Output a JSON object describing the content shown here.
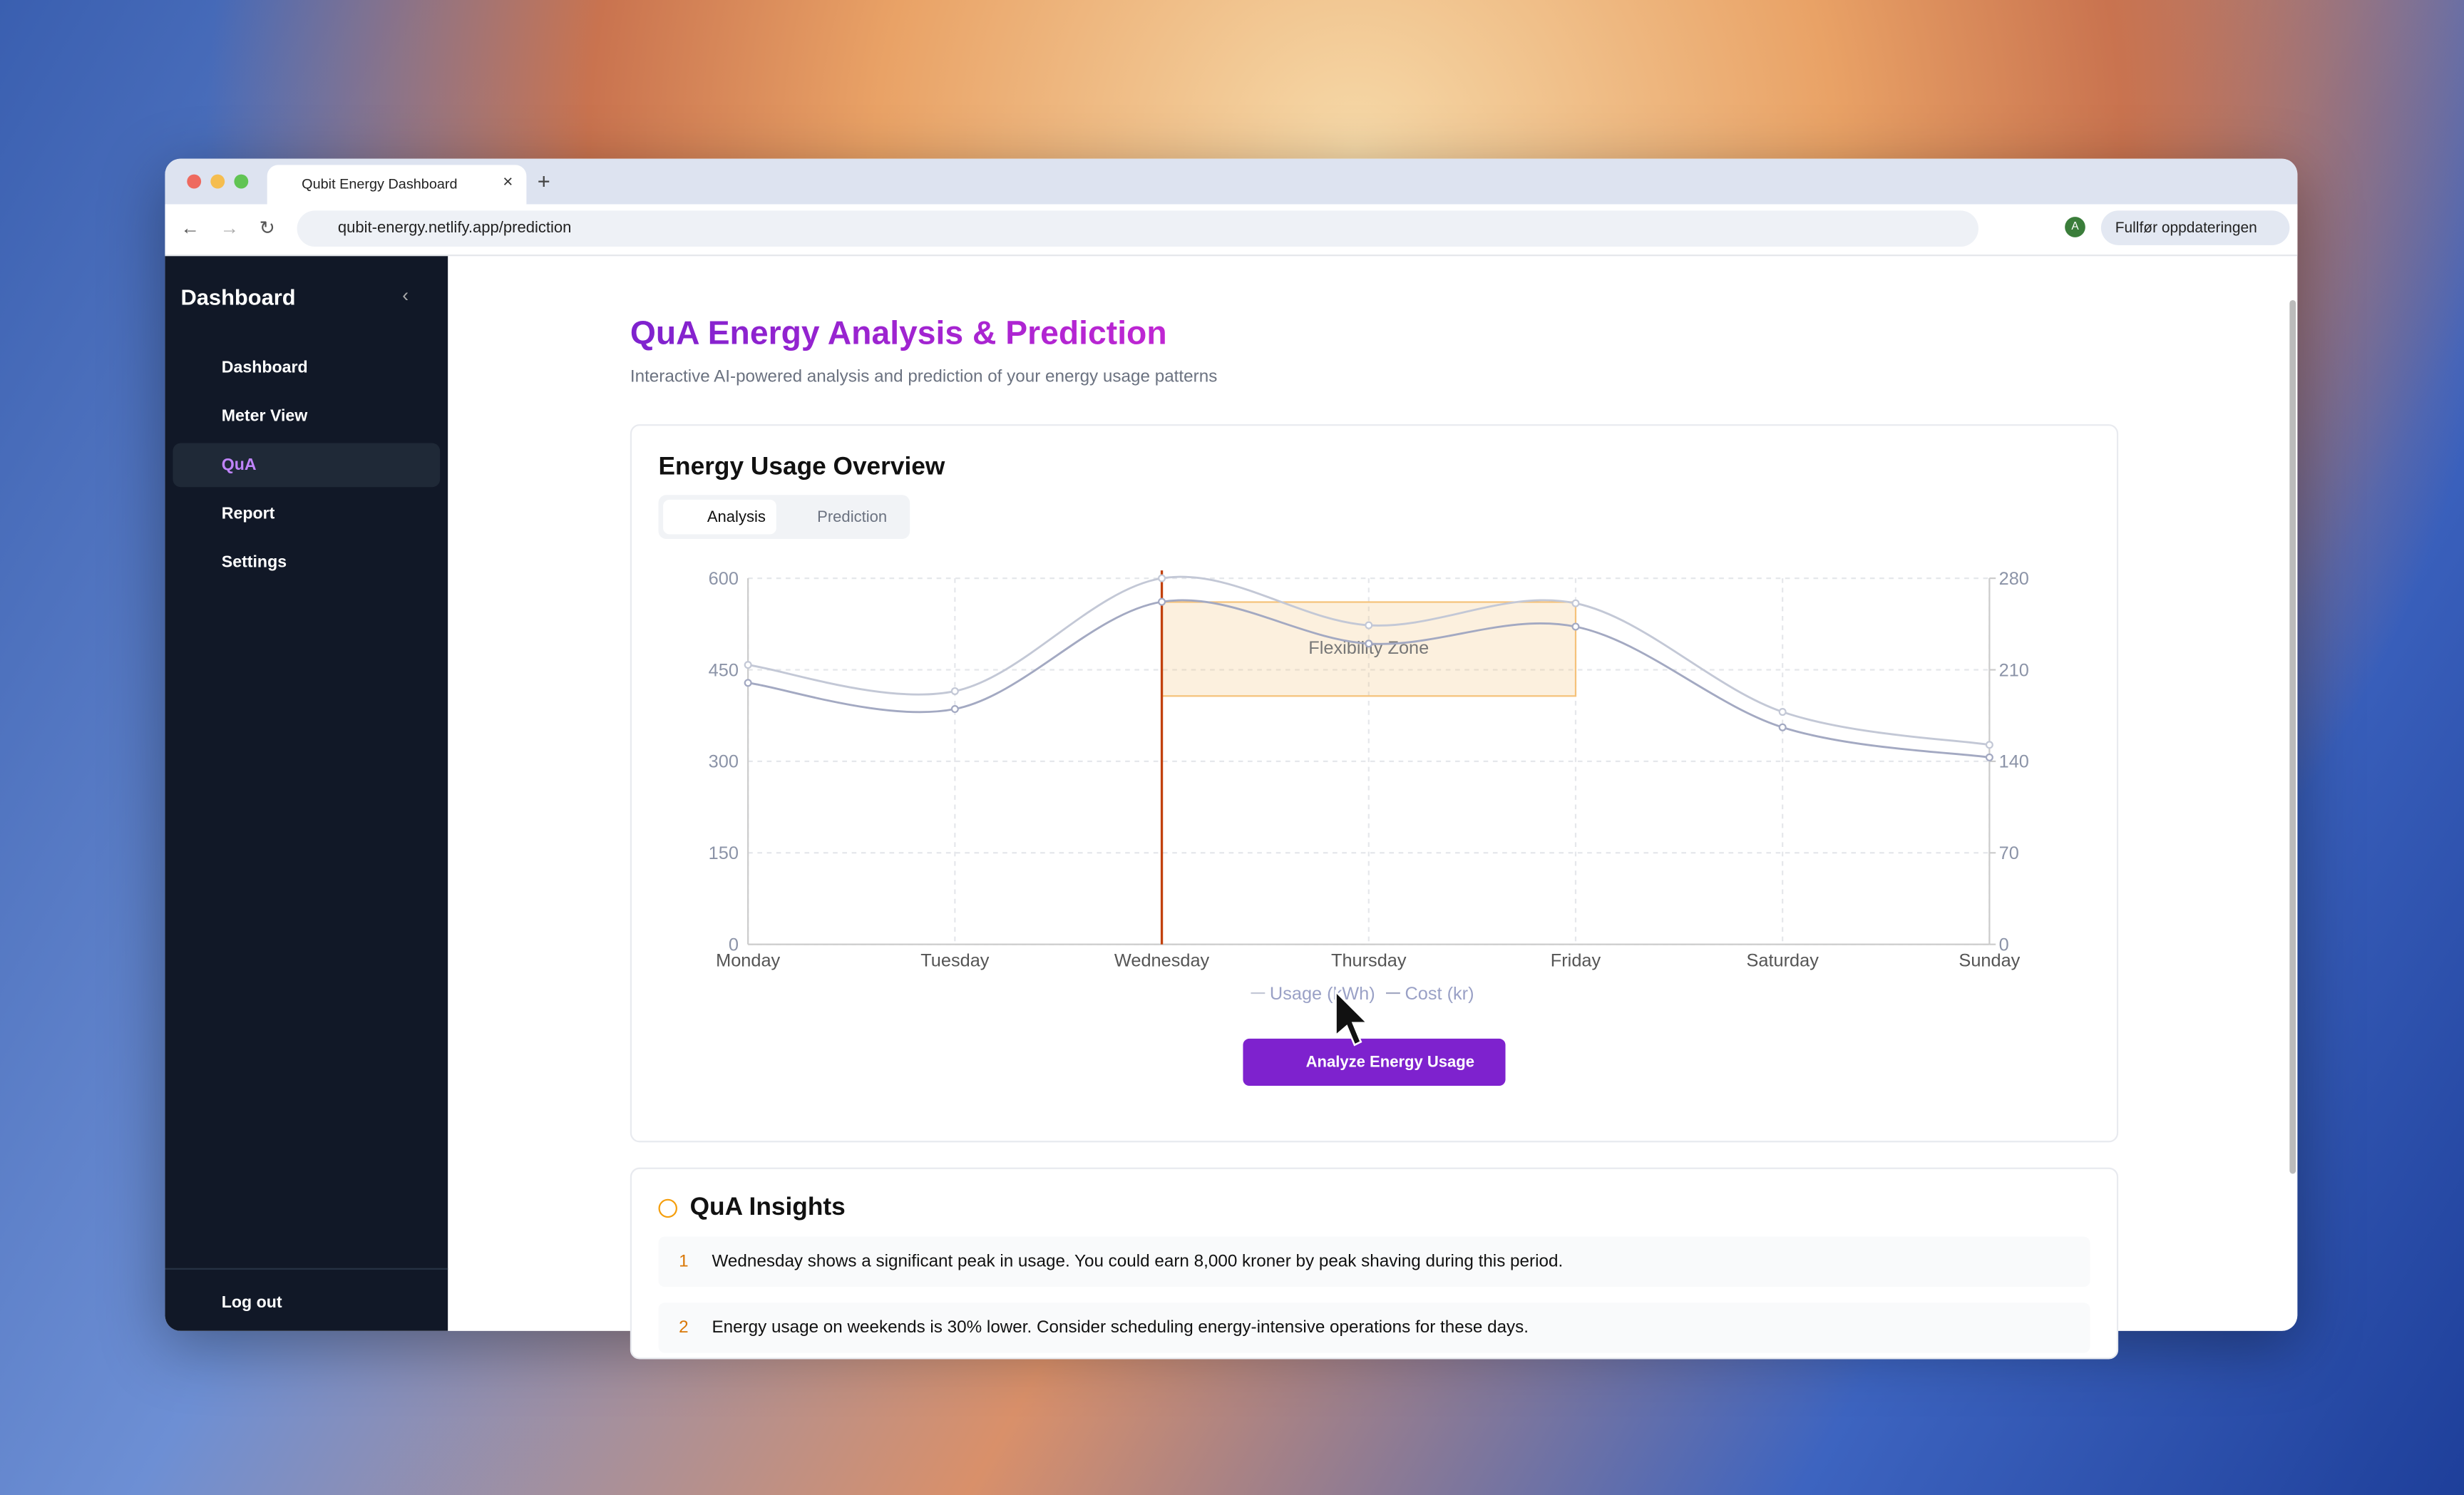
{
  "browser": {
    "tab_title": "Qubit Energy Dashboard",
    "url": "qubit-energy.netlify.app/prediction",
    "profile_initial": "A",
    "update_button": "Fullfør oppdateringen"
  },
  "sidebar": {
    "title": "Dashboard",
    "items": [
      "Dashboard",
      "Meter View",
      "QuA",
      "Report",
      "Settings"
    ],
    "logout": "Log out"
  },
  "page": {
    "title": "QuA Energy Analysis & Prediction",
    "subtitle": "Interactive AI-powered analysis and prediction of your energy usage patterns"
  },
  "card": {
    "title": "Energy Usage Overview",
    "tabs": [
      "Analysis",
      "Prediction"
    ],
    "button": "Analyze Energy Usage"
  },
  "chart_data": {
    "type": "line",
    "categories": [
      "Monday",
      "Tuesday",
      "Wednesday",
      "Thursday",
      "Friday",
      "Saturday",
      "Sunday"
    ],
    "series": [
      {
        "name": "Usage (kWh)",
        "color": "#c3c8d6",
        "values": [
          458,
          415,
          600,
          523,
          559,
          381,
          327
        ]
      },
      {
        "name": "Cost (kr)",
        "color": "#a3a9c2",
        "axis": "y2",
        "values": [
          200,
          180,
          262,
          230,
          243,
          166,
          143
        ]
      }
    ],
    "ylim": [
      0,
      600
    ],
    "yticks": [
      0,
      150,
      300,
      450,
      600
    ],
    "y2lim": [
      0,
      280
    ],
    "y2ticks": [
      0,
      70,
      140,
      210,
      280
    ],
    "grid": true,
    "zone": {
      "label": "Flexibility Zone",
      "from": "Wednesday",
      "to": "Friday",
      "ylim": [
        407,
        561
      ],
      "color": "#f5c27a"
    },
    "marker_line": {
      "at": "Wednesday",
      "color": "#c2410c"
    }
  },
  "insights": {
    "title": "QuA Insights",
    "items": [
      {
        "number": 1,
        "text": "Wednesday shows a significant peak in usage. You could earn 8,000 kroner by peak shaving during this period."
      },
      {
        "number": 2,
        "text": "Energy usage on weekends is 30% lower. Consider scheduling energy-intensive operations for these days."
      }
    ]
  }
}
